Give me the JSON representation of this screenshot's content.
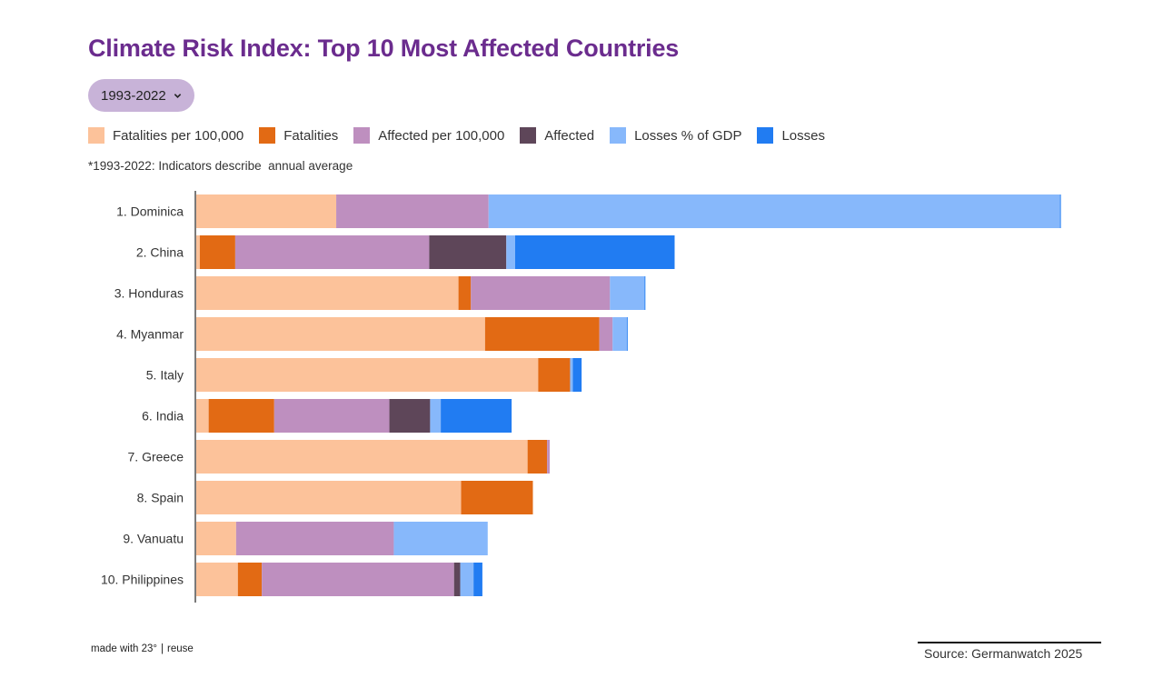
{
  "title": "Climate Risk Index: Top 10 Most Affected Countries",
  "period_selector": {
    "label": "1993-2022",
    "icon": "chevron-down-icon"
  },
  "note": "*1993-2022: Indicators describe  annual average",
  "footer": {
    "made_with": "made with 23°",
    "separator": "|",
    "reuse": "reuse",
    "source": "Source: Germanwatch 2025"
  },
  "colors": {
    "title": "#6b2c8e",
    "pill": "#c8b3d8"
  },
  "chart_data": {
    "type": "bar",
    "orientation": "horizontal",
    "stacked": true,
    "categories": [
      "1. Dominica",
      "2. China",
      "3. Honduras",
      "4. Myanmar",
      "5. Italy",
      "6. India",
      "7. Greece",
      "8. Spain",
      "9. Vanuatu",
      "10. Philippines"
    ],
    "series": [
      {
        "name": "Fatalities per 100,000",
        "color": "#fcc29a",
        "values": [
          15.8,
          0.4,
          29.6,
          32.6,
          38.6,
          1.4,
          37.4,
          29.9,
          4.5,
          4.7
        ]
      },
      {
        "name": "Fatalities",
        "color": "#e26a14",
        "values": [
          0,
          4.0,
          1.4,
          12.9,
          3.6,
          7.4,
          2.2,
          8.1,
          0,
          2.7
        ]
      },
      {
        "name": "Affected per 100,000",
        "color": "#be8fbf",
        "values": [
          17.2,
          21.9,
          15.7,
          1.5,
          0,
          13.0,
          0.3,
          0,
          17.8,
          21.7
        ]
      },
      {
        "name": "Affected",
        "color": "#5e4659",
        "values": [
          0,
          8.7,
          0,
          0,
          0,
          4.6,
          0,
          0,
          0,
          0.7
        ]
      },
      {
        "name": "Losses % of GDP",
        "color": "#87b8fb",
        "values": [
          64.5,
          1.0,
          3.9,
          1.6,
          0.3,
          1.2,
          0,
          0,
          10.6,
          1.5
        ]
      },
      {
        "name": "Losses",
        "color": "#217cf2",
        "values": [
          0.1,
          18.0,
          0.1,
          0.1,
          1.0,
          8.0,
          0,
          0,
          0,
          1.0
        ]
      }
    ],
    "xlim": [
      0,
      100
    ],
    "grid": false,
    "legend_position": "top-left"
  }
}
